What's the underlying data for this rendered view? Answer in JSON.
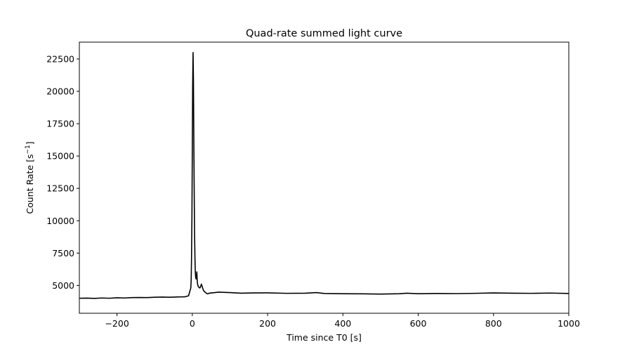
{
  "chart_data": {
    "type": "line",
    "title": "Quad-rate summed light curve",
    "xlabel": "Time since T0 [s]",
    "ylabel": "Count Rate [s",
    "ylabel_sup": "−1",
    "ylabel_close": "]",
    "xlim": [
      -300,
      1000
    ],
    "ylim": [
      2850,
      23800
    ],
    "x_ticks": [
      -200,
      0,
      200,
      400,
      600,
      800,
      1000
    ],
    "x_tick_labels": [
      "−200",
      "0",
      "200",
      "400",
      "600",
      "800",
      "1000"
    ],
    "y_ticks": [
      5000,
      7500,
      10000,
      12500,
      15000,
      17500,
      20000,
      22500
    ],
    "y_tick_labels": [
      "5000",
      "7500",
      "10000",
      "12500",
      "15000",
      "17500",
      "20000",
      "22500"
    ],
    "grid": false,
    "line_color": "#000000",
    "series": [
      {
        "x": [
          -300,
          -280,
          -260,
          -240,
          -220,
          -200,
          -180,
          -160,
          -140,
          -120,
          -100,
          -80,
          -60,
          -40,
          -20,
          -10,
          -6,
          -4,
          -3,
          -2,
          -1,
          0,
          1,
          2,
          3,
          4,
          5,
          6,
          7,
          8,
          9,
          10,
          11,
          12,
          13,
          14,
          16,
          18,
          20,
          22,
          24,
          26,
          28,
          30,
          35,
          40,
          45,
          50,
          60,
          70,
          80,
          100,
          130,
          160,
          200,
          250,
          300,
          330,
          350,
          400,
          450,
          500,
          550,
          570,
          600,
          650,
          700,
          750,
          800,
          850,
          900,
          950,
          1000
        ],
        "y": [
          4010,
          4020,
          4000,
          4030,
          4010,
          4050,
          4030,
          4060,
          4070,
          4060,
          4090,
          4100,
          4090,
          4110,
          4120,
          4200,
          4600,
          4800,
          5400,
          7200,
          10200,
          15500,
          20500,
          23000,
          21000,
          16500,
          12500,
          9000,
          7200,
          6000,
          5600,
          5500,
          5700,
          6050,
          5400,
          5100,
          4900,
          4850,
          4800,
          4900,
          5100,
          4950,
          4750,
          4600,
          4450,
          4350,
          4400,
          4420,
          4450,
          4480,
          4470,
          4450,
          4400,
          4420,
          4430,
          4390,
          4400,
          4450,
          4380,
          4360,
          4350,
          4330,
          4360,
          4400,
          4360,
          4380,
          4370,
          4390,
          4420,
          4400,
          4390,
          4410,
          4380
        ]
      }
    ]
  }
}
